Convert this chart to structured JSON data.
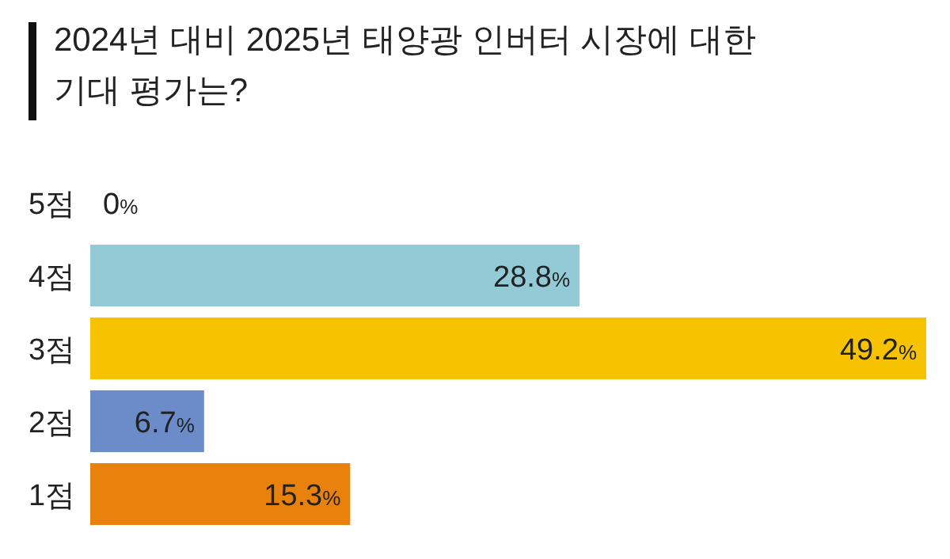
{
  "chart_data": {
    "type": "bar",
    "orientation": "horizontal",
    "title": "2024년 대비 2025년 태양광 인버터 시장에 대한 기대 평가는?",
    "categories": [
      "5점",
      "4점",
      "3점",
      "2점",
      "1점"
    ],
    "values": [
      0,
      28.8,
      49.2,
      6.7,
      15.3
    ],
    "colors": [
      null,
      "#92cad6",
      "#f7c200",
      "#6b8cc8",
      "#e8820c"
    ],
    "value_labels": [
      "0%",
      "28.8%",
      "49.2%",
      "6.7%",
      "15.3%"
    ]
  }
}
